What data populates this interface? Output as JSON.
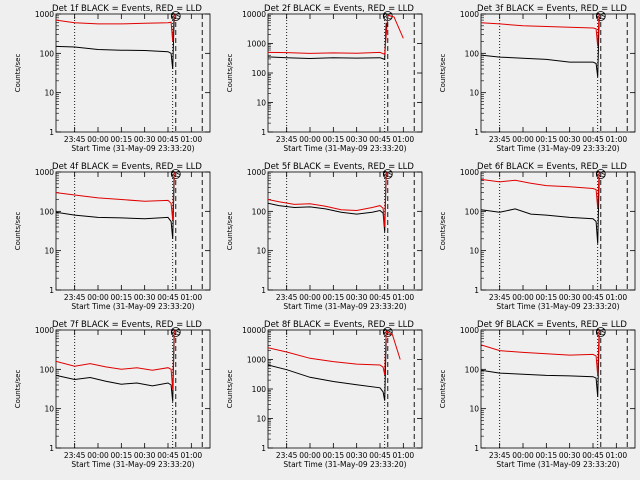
{
  "figure": {
    "ylabel": "Counts/sec",
    "xlabel": "Start Time (31-May-09 23:33:20)",
    "y_ticks": [
      1,
      10,
      100,
      1000,
      10000
    ],
    "y_tick_labels": [
      "1",
      "10",
      "100",
      "1000",
      "10000"
    ],
    "colors": {
      "events": "#000000",
      "lld": "#e00000",
      "background": "#efefef"
    }
  },
  "chart_data": [
    {
      "type": "line",
      "title": "Det 1f BLACK = Events, RED = LLD",
      "xlabel": "Start Time (31-May-09 23:33:20)",
      "ylabel": "Counts/sec",
      "y_scale": "log",
      "ylim": [
        1,
        1000
      ],
      "x_tick_labels": [
        "23:45",
        "00:00",
        "00:15",
        "00:30",
        "00:45",
        "01:00"
      ],
      "markers": {
        "dotted": [
          "23:45",
          "00:48"
        ],
        "dashed": [
          "00:50",
          "01:07"
        ],
        "label": "RS"
      },
      "series": [
        {
          "color": "#000000",
          "x": [
            "23:33",
            "23:45",
            "00:00",
            "00:15",
            "00:30",
            "00:45",
            "00:47",
            "00:48",
            "00:49"
          ],
          "values": [
            150,
            145,
            125,
            120,
            118,
            110,
            100,
            40,
            800
          ]
        },
        {
          "color": "#e00000",
          "x": [
            "23:33",
            "23:45",
            "00:00",
            "00:15",
            "00:30",
            "00:45",
            "00:47",
            "00:48",
            "00:49"
          ],
          "values": [
            700,
            600,
            560,
            560,
            580,
            600,
            620,
            200,
            1200
          ]
        }
      ]
    },
    {
      "type": "line",
      "title": "Det 2f BLACK = Events, RED = LLD",
      "xlabel": "Start Time (31-May-09 23:33:20)",
      "ylabel": "Counts/sec",
      "y_scale": "log",
      "ylim": [
        1,
        10000
      ],
      "x_tick_labels": [
        "23:45",
        "00:00",
        "00:15",
        "00:30",
        "00:45",
        "01:00"
      ],
      "markers": {
        "dotted": [
          "23:45",
          "00:48"
        ],
        "dashed": [
          "00:50",
          "01:07"
        ],
        "label": "RS"
      },
      "series": [
        {
          "color": "#000000",
          "x": [
            "23:33",
            "23:45",
            "00:00",
            "00:15",
            "00:30",
            "00:45",
            "00:48",
            "00:49"
          ],
          "values": [
            350,
            330,
            310,
            330,
            320,
            330,
            290,
            5000
          ]
        },
        {
          "color": "#e00000",
          "x": [
            "23:33",
            "23:45",
            "00:00",
            "00:15",
            "00:30",
            "00:45",
            "00:48",
            "00:50",
            "00:54",
            "01:00"
          ],
          "values": [
            500,
            490,
            460,
            480,
            470,
            500,
            430,
            9000,
            8000,
            1500
          ]
        }
      ]
    },
    {
      "type": "line",
      "title": "Det 3f BLACK = Events, RED = LLD",
      "xlabel": "Start Time (31-May-09 23:33:20)",
      "ylabel": "Counts/sec",
      "y_scale": "log",
      "ylim": [
        1,
        1000
      ],
      "x_tick_labels": [
        "23:45",
        "00:00",
        "00:15",
        "00:30",
        "00:45",
        "01:00"
      ],
      "markers": {
        "dotted": [
          "23:45",
          "00:48"
        ],
        "dashed": [
          "00:50",
          "01:07"
        ],
        "label": "RS"
      },
      "series": [
        {
          "color": "#000000",
          "x": [
            "23:33",
            "23:45",
            "00:00",
            "00:15",
            "00:30",
            "00:45",
            "00:47",
            "00:48",
            "00:49"
          ],
          "values": [
            90,
            80,
            75,
            70,
            60,
            60,
            55,
            25,
            800
          ]
        },
        {
          "color": "#e00000",
          "x": [
            "23:33",
            "23:45",
            "00:00",
            "00:15",
            "00:30",
            "00:45",
            "00:47",
            "00:48",
            "00:49"
          ],
          "values": [
            600,
            560,
            500,
            480,
            460,
            440,
            420,
            150,
            1200
          ]
        }
      ]
    },
    {
      "type": "line",
      "title": "Det 4f BLACK = Events, RED = LLD",
      "xlabel": "Start Time (31-May-09 23:33:20)",
      "ylabel": "Counts/sec",
      "y_scale": "log",
      "ylim": [
        1,
        1000
      ],
      "x_tick_labels": [
        "23:45",
        "00:00",
        "00:15",
        "00:30",
        "00:45",
        "01:00"
      ],
      "markers": {
        "dotted": [
          "23:45",
          "00:48"
        ],
        "dashed": [
          "00:50",
          "01:07"
        ],
        "label": "RS"
      },
      "series": [
        {
          "color": "#000000",
          "x": [
            "23:33",
            "23:45",
            "00:00",
            "00:15",
            "00:30",
            "00:45",
            "00:47",
            "00:48",
            "00:49"
          ],
          "values": [
            95,
            80,
            70,
            68,
            65,
            70,
            55,
            20,
            700
          ]
        },
        {
          "color": "#e00000",
          "x": [
            "23:33",
            "23:45",
            "00:00",
            "00:15",
            "00:30",
            "00:45",
            "00:47",
            "00:48",
            "00:49"
          ],
          "values": [
            300,
            260,
            220,
            200,
            180,
            190,
            160,
            60,
            1200
          ]
        }
      ]
    },
    {
      "type": "line",
      "title": "Det 5f BLACK = Events, RED = LLD",
      "xlabel": "Start Time (31-May-09 23:33:20)",
      "ylabel": "Counts/sec",
      "y_scale": "log",
      "ylim": [
        1,
        1000
      ],
      "x_tick_labels": [
        "23:45",
        "00:00",
        "00:15",
        "00:30",
        "00:45",
        "01:00"
      ],
      "markers": {
        "dotted": [
          "23:45",
          "00:48"
        ],
        "dashed": [
          "00:50",
          "01:07"
        ],
        "label": "RS"
      },
      "series": [
        {
          "color": "#000000",
          "x": [
            "23:33",
            "23:40",
            "23:50",
            "00:00",
            "00:10",
            "00:20",
            "00:30",
            "00:40",
            "00:45",
            "00:47",
            "00:48",
            "00:49"
          ],
          "values": [
            160,
            140,
            125,
            130,
            115,
            95,
            85,
            95,
            105,
            90,
            30,
            900
          ]
        },
        {
          "color": "#e00000",
          "x": [
            "23:33",
            "23:40",
            "23:50",
            "00:00",
            "00:10",
            "00:20",
            "00:30",
            "00:40",
            "00:45",
            "00:47",
            "00:48",
            "00:49"
          ],
          "values": [
            200,
            175,
            150,
            155,
            135,
            110,
            105,
            125,
            140,
            120,
            40,
            1200
          ]
        }
      ]
    },
    {
      "type": "line",
      "title": "Det 6f BLACK = Events, RED = LLD",
      "xlabel": "Start Time (31-May-09 23:33:20)",
      "ylabel": "Counts/sec",
      "y_scale": "log",
      "ylim": [
        1,
        1000
      ],
      "x_tick_labels": [
        "23:45",
        "00:00",
        "00:15",
        "00:30",
        "00:45",
        "01:00"
      ],
      "markers": {
        "dotted": [
          "23:45",
          "00:48"
        ],
        "dashed": [
          "00:50",
          "01:07"
        ],
        "label": "RS"
      },
      "series": [
        {
          "color": "#000000",
          "x": [
            "23:33",
            "23:45",
            "23:55",
            "00:05",
            "00:15",
            "00:30",
            "00:45",
            "00:47",
            "00:48",
            "00:49"
          ],
          "values": [
            110,
            95,
            115,
            85,
            80,
            70,
            65,
            55,
            15,
            700
          ]
        },
        {
          "color": "#e00000",
          "x": [
            "23:33",
            "23:45",
            "23:55",
            "00:05",
            "00:15",
            "00:30",
            "00:45",
            "00:47",
            "00:48",
            "00:49"
          ],
          "values": [
            650,
            560,
            620,
            520,
            450,
            420,
            380,
            360,
            120,
            1200
          ]
        }
      ]
    },
    {
      "type": "line",
      "title": "Det 7f BLACK = Events, RED = LLD",
      "xlabel": "Start Time (31-May-09 23:33:20)",
      "ylabel": "Counts/sec",
      "y_scale": "log",
      "ylim": [
        1,
        1000
      ],
      "x_tick_labels": [
        "23:45",
        "00:00",
        "00:15",
        "00:30",
        "00:45",
        "01:00"
      ],
      "markers": {
        "dotted": [
          "23:45",
          "00:48"
        ],
        "dashed": [
          "00:50",
          "01:07"
        ],
        "label": "RS"
      },
      "series": [
        {
          "color": "#000000",
          "x": [
            "23:33",
            "23:45",
            "23:55",
            "00:05",
            "00:15",
            "00:25",
            "00:35",
            "00:45",
            "00:47",
            "00:48",
            "00:49"
          ],
          "values": [
            70,
            55,
            62,
            50,
            42,
            45,
            38,
            45,
            40,
            15,
            700
          ]
        },
        {
          "color": "#e00000",
          "x": [
            "23:33",
            "23:45",
            "23:55",
            "00:05",
            "00:15",
            "00:25",
            "00:35",
            "00:45",
            "00:47",
            "00:48",
            "00:49"
          ],
          "values": [
            160,
            120,
            140,
            115,
            100,
            110,
            95,
            110,
            100,
            30,
            1200
          ]
        }
      ]
    },
    {
      "type": "line",
      "title": "Det 8f BLACK = Events, RED = LLD",
      "xlabel": "Start Time (31-May-09 23:33:20)",
      "ylabel": "Counts/sec",
      "y_scale": "log",
      "ylim": [
        1,
        10000
      ],
      "x_tick_labels": [
        "23:45",
        "00:00",
        "00:15",
        "00:30",
        "00:45",
        "01:00"
      ],
      "markers": {
        "dotted": [
          "23:45",
          "00:48"
        ],
        "dashed": [
          "00:50",
          "01:07"
        ],
        "label": "RS"
      },
      "series": [
        {
          "color": "#000000",
          "x": [
            "23:33",
            "23:45",
            "00:00",
            "00:15",
            "00:30",
            "00:45",
            "00:47",
            "00:48",
            "00:49"
          ],
          "values": [
            650,
            450,
            250,
            180,
            140,
            110,
            80,
            40,
            5000
          ]
        },
        {
          "color": "#e00000",
          "x": [
            "23:33",
            "23:45",
            "00:00",
            "00:15",
            "00:30",
            "00:45",
            "00:47",
            "00:48",
            "00:49",
            "00:53",
            "00:58"
          ],
          "values": [
            2500,
            1800,
            1100,
            850,
            700,
            650,
            550,
            300,
            9000,
            7000,
            1000
          ]
        }
      ]
    },
    {
      "type": "line",
      "title": "Det 9f BLACK = Events, RED = LLD",
      "xlabel": "Start Time (31-May-09 23:33:20)",
      "ylabel": "Counts/sec",
      "y_scale": "log",
      "ylim": [
        1,
        1000
      ],
      "x_tick_labels": [
        "23:45",
        "00:00",
        "00:15",
        "00:30",
        "00:45",
        "01:00"
      ],
      "markers": {
        "dotted": [
          "23:45",
          "00:48"
        ],
        "dashed": [
          "00:50",
          "01:07"
        ],
        "label": "RS"
      },
      "series": [
        {
          "color": "#000000",
          "x": [
            "23:33",
            "23:45",
            "00:00",
            "00:15",
            "00:30",
            "00:45",
            "00:47",
            "00:48",
            "00:49"
          ],
          "values": [
            95,
            80,
            75,
            70,
            68,
            65,
            60,
            20,
            700
          ]
        },
        {
          "color": "#e00000",
          "x": [
            "23:33",
            "23:45",
            "00:00",
            "00:15",
            "00:30",
            "00:45",
            "00:47",
            "00:48",
            "00:49"
          ],
          "values": [
            420,
            300,
            270,
            250,
            230,
            240,
            220,
            70,
            1200
          ]
        }
      ]
    }
  ]
}
